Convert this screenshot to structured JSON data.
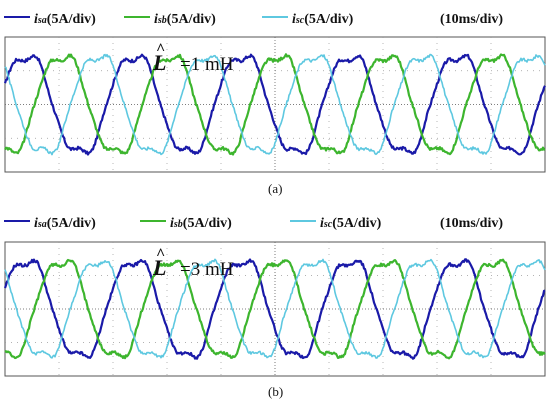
{
  "panels": [
    {
      "caption": "(a)",
      "inductance_label": "=1 mH",
      "inductance_symbol": "L",
      "timebase": "(10ms/div)",
      "legend": [
        {
          "var": "i",
          "sub": "sa",
          "scale": "(5A/div)",
          "color": "#1a1aa8"
        },
        {
          "var": "i",
          "sub": "sb",
          "scale": "(5A/div)",
          "color": "#3db52e"
        },
        {
          "var": "i",
          "sub": "sc",
          "scale": "(5A/div)",
          "color": "#5ec8e0"
        }
      ]
    },
    {
      "caption": "(b)",
      "inductance_label": "=3 mH",
      "inductance_symbol": "L",
      "timebase": "(10ms/div)",
      "legend": [
        {
          "var": "i",
          "sub": "sa",
          "scale": "(5A/div)",
          "color": "#1a1aa8"
        },
        {
          "var": "i",
          "sub": "sb",
          "scale": "(5A/div)",
          "color": "#3db52e"
        },
        {
          "var": "i",
          "sub": "sc",
          "scale": "(5A/div)",
          "color": "#5ec8e0"
        }
      ]
    }
  ],
  "chart_data": [
    {
      "type": "line",
      "x_divisions": 10,
      "y_divisions": 4,
      "cycles_shown": 5,
      "series": [
        {
          "name": "isa",
          "phase_deg": 0
        },
        {
          "name": "isb",
          "phase_deg": -120
        },
        {
          "name": "isc",
          "phase_deg": 120
        }
      ]
    },
    {
      "type": "line",
      "x_divisions": 10,
      "y_divisions": 4,
      "cycles_shown": 5,
      "series": [
        {
          "name": "isa",
          "phase_deg": 0
        },
        {
          "name": "isb",
          "phase_deg": -120
        },
        {
          "name": "isc",
          "phase_deg": 120
        }
      ]
    }
  ]
}
